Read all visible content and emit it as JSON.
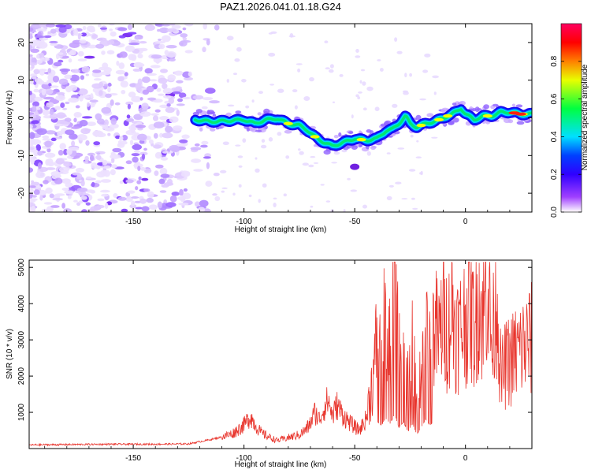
{
  "title": "PAZ1.2026.041.01.18.G24",
  "chart_data": [
    {
      "type": "heatmap",
      "xlabel": "Height of straight line (km)",
      "ylabel": "Frequency (Hz)",
      "xlim": [
        -197,
        30
      ],
      "ylim": [
        -25,
        25
      ],
      "xticks": [
        -150,
        -100,
        -50,
        0
      ],
      "xtick_labels": [
        "-150",
        "-100",
        "-50",
        "0"
      ],
      "yticks": [
        -20,
        -10,
        0,
        10,
        20
      ],
      "ytick_labels": [
        "-20",
        "-10",
        "0",
        "10",
        "20"
      ],
      "colorbar": {
        "label": "Normalized spectral amplitude",
        "range": [
          0,
          1
        ],
        "ticks": [
          0,
          0.2,
          0.4,
          0.6,
          0.8
        ],
        "tick_labels": [
          "0.0",
          "0.2",
          "0.4",
          "0.6",
          "0.8"
        ],
        "colormap": [
          "#ffffff",
          "#7a00ff",
          "#0000ff",
          "#00ffff",
          "#00ff00",
          "#ffff00",
          "#ff8000",
          "#ff0000",
          "#ff0080"
        ]
      },
      "ridge": {
        "x": [
          -122,
          -115,
          -108,
          -100,
          -95,
          -90,
          -85,
          -80,
          -75,
          -72,
          -68,
          -64,
          -60,
          -55,
          -50,
          -45,
          -40,
          -36,
          -33,
          -30,
          -27,
          -25,
          -22,
          -18,
          -14,
          -10,
          -6,
          -2,
          0,
          4,
          8,
          12,
          16,
          20,
          25,
          30
        ],
        "freq": [
          -0.5,
          -1,
          -0.8,
          -0.5,
          -1.5,
          -0.5,
          -0.2,
          -1.5,
          -2,
          -3,
          -5,
          -6.5,
          -7.5,
          -6.5,
          -5.5,
          -6,
          -5.5,
          -3.5,
          -3,
          -1.5,
          0.5,
          -1.5,
          -2.5,
          -1.5,
          -1,
          0,
          1,
          2.5,
          1,
          -0.5,
          0.5,
          0.5,
          1.5,
          1.5,
          1,
          1
        ]
      }
    },
    {
      "type": "line",
      "xlabel": "Height of straight line (km)",
      "ylabel": "SNR (10 * v/v)",
      "xlim": [
        -197,
        30
      ],
      "ylim": [
        0,
        5200
      ],
      "xticks": [
        -150,
        -100,
        -50,
        0
      ],
      "xtick_labels": [
        "-150",
        "-100",
        "-50",
        "0"
      ],
      "yticks": [
        1000,
        2000,
        3000,
        4000,
        5000
      ],
      "ytick_labels": [
        "1000",
        "2000",
        "3000",
        "4000",
        "5000"
      ],
      "series": [
        {
          "name": "SNR",
          "color": "#e8342c",
          "x": [
            -197,
            -180,
            -160,
            -140,
            -125,
            -115,
            -110,
            -105,
            -100,
            -97,
            -95,
            -92,
            -88,
            -85,
            -80,
            -75,
            -72,
            -70,
            -68,
            -66,
            -64,
            -62,
            -60,
            -58,
            -55,
            -52,
            -50,
            -48,
            -45,
            -43,
            -41,
            -40,
            -38,
            -36,
            -34,
            -32,
            -30,
            -28,
            -26,
            -24,
            -22,
            -20,
            -18,
            -16,
            -14,
            -12,
            -10,
            -8,
            -6,
            -4,
            -2,
            0,
            2,
            4,
            6,
            8,
            10,
            12,
            14,
            16,
            18,
            20,
            24,
            30
          ],
          "values": [
            100,
            110,
            120,
            120,
            130,
            250,
            320,
            420,
            650,
            900,
            650,
            420,
            300,
            220,
            300,
            380,
            520,
            700,
            1000,
            800,
            1100,
            1350,
            900,
            1200,
            900,
            700,
            600,
            500,
            800,
            1500,
            2200,
            3200,
            2800,
            3600,
            3000,
            4100,
            2500,
            3200,
            2000,
            3000,
            1700,
            2500,
            3500,
            2800,
            3400,
            3000,
            3700,
            3200,
            3900,
            3200,
            3300,
            3600,
            4000,
            3300,
            4300,
            3500,
            4900,
            2600,
            4500,
            1900,
            2300,
            2400,
            2700,
            3000
          ]
        }
      ]
    }
  ]
}
